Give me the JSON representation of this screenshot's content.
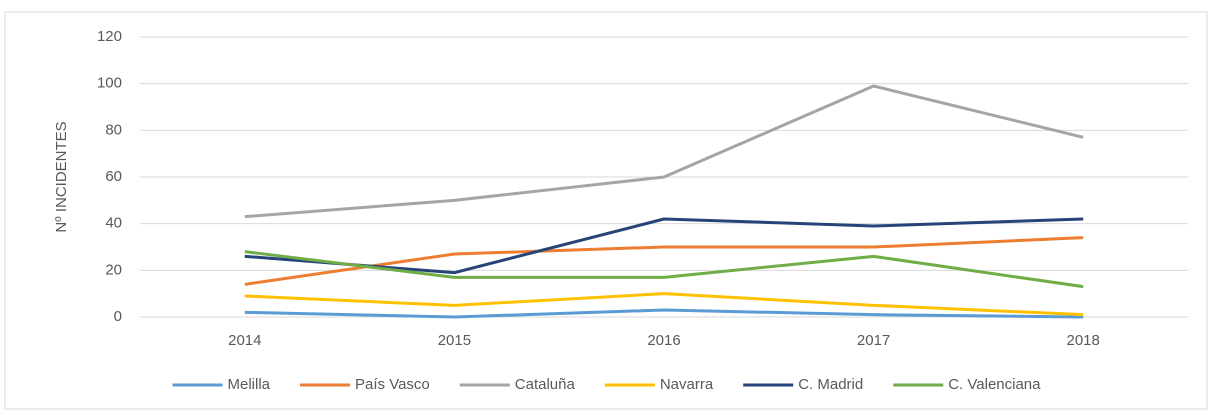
{
  "chart_data": {
    "type": "line",
    "y_label": "Nº INCIDENTES",
    "categories": [
      "2014",
      "2015",
      "2016",
      "2017",
      "2018"
    ],
    "series": [
      {
        "name": "Melilla",
        "color": "#5b9bd5",
        "values": [
          2,
          0,
          3,
          1,
          0
        ]
      },
      {
        "name": "País Vasco",
        "color": "#ed7d31",
        "values": [
          14,
          27,
          30,
          30,
          34
        ]
      },
      {
        "name": "Cataluña",
        "color": "#a5a5a5",
        "values": [
          43,
          50,
          60,
          99,
          77
        ]
      },
      {
        "name": "Navarra",
        "color": "#ffc000",
        "values": [
          9,
          5,
          10,
          5,
          1
        ]
      },
      {
        "name": "C. Madrid",
        "color": "#264478",
        "values": [
          26,
          19,
          42,
          39,
          42
        ]
      },
      {
        "name": "C. Valenciana",
        "color": "#70ad47",
        "values": [
          28,
          17,
          17,
          26,
          13
        ]
      }
    ],
    "ylim": [
      0,
      120
    ],
    "yticks": [
      0,
      20,
      40,
      60,
      80,
      100,
      120
    ],
    "grid": true,
    "legend": "bottom"
  }
}
